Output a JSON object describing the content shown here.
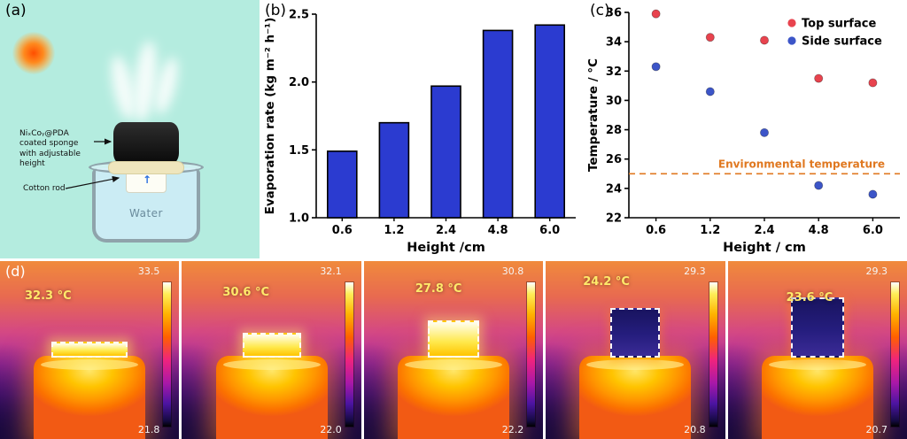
{
  "figure": {
    "panels": {
      "a": {
        "label": "(a)",
        "sponge_label": "NiₓCoᵧ@PDA coated sponge with adjustable height",
        "cotton_label": "Cotton rod",
        "water_label": "Water"
      },
      "b": {
        "label": "(b)"
      },
      "c": {
        "label": "(c)"
      },
      "d": {
        "label": "(d)",
        "images": [
          {
            "temp": "32.3 °C",
            "scale_max": "33.5",
            "scale_min": "21.8"
          },
          {
            "temp": "30.6 °C",
            "scale_max": "32.1",
            "scale_min": "22.0"
          },
          {
            "temp": "27.8 °C",
            "scale_max": "30.8",
            "scale_min": "22.2"
          },
          {
            "temp": "24.2 °C",
            "scale_max": "29.3",
            "scale_min": "20.8"
          },
          {
            "temp": "23.6 °C",
            "scale_max": "29.3",
            "scale_min": "20.7"
          }
        ]
      }
    }
  },
  "chart_data": [
    {
      "type": "bar",
      "panel": "b",
      "title": "",
      "categories": [
        "0.6",
        "1.2",
        "2.4",
        "4.8",
        "6.0"
      ],
      "values": [
        1.49,
        1.7,
        1.97,
        2.38,
        2.42
      ],
      "xlabel": "Height /cm",
      "ylabel": "Evaporation rate (kg m⁻² h⁻¹)",
      "ylim": [
        1.0,
        2.5
      ],
      "yticks": [
        "1.0",
        "1.5",
        "2.0",
        "2.5"
      ],
      "bar_color": "#2b3bd0",
      "bar_edge": "#000000",
      "grid": false
    },
    {
      "type": "scatter",
      "panel": "c",
      "categories": [
        "0.6",
        "1.2",
        "2.4",
        "4.8",
        "6.0"
      ],
      "series": [
        {
          "name": "Top surface",
          "color": "#e8434e",
          "values": [
            35.9,
            34.3,
            34.1,
            31.5,
            31.2
          ]
        },
        {
          "name": "Side surface",
          "color": "#3c55c8",
          "values": [
            32.3,
            30.6,
            27.8,
            24.2,
            23.6
          ]
        }
      ],
      "xlabel": "Height / cm",
      "ylabel": "Temperature / °C",
      "ylim": [
        22,
        36
      ],
      "yticks": [
        "22",
        "24",
        "26",
        "28",
        "30",
        "32",
        "34",
        "36"
      ],
      "ref_line": {
        "value": 25,
        "label": "Environmental temperature",
        "color": "#e07820"
      },
      "legend_position": "top-right",
      "grid": false
    }
  ]
}
